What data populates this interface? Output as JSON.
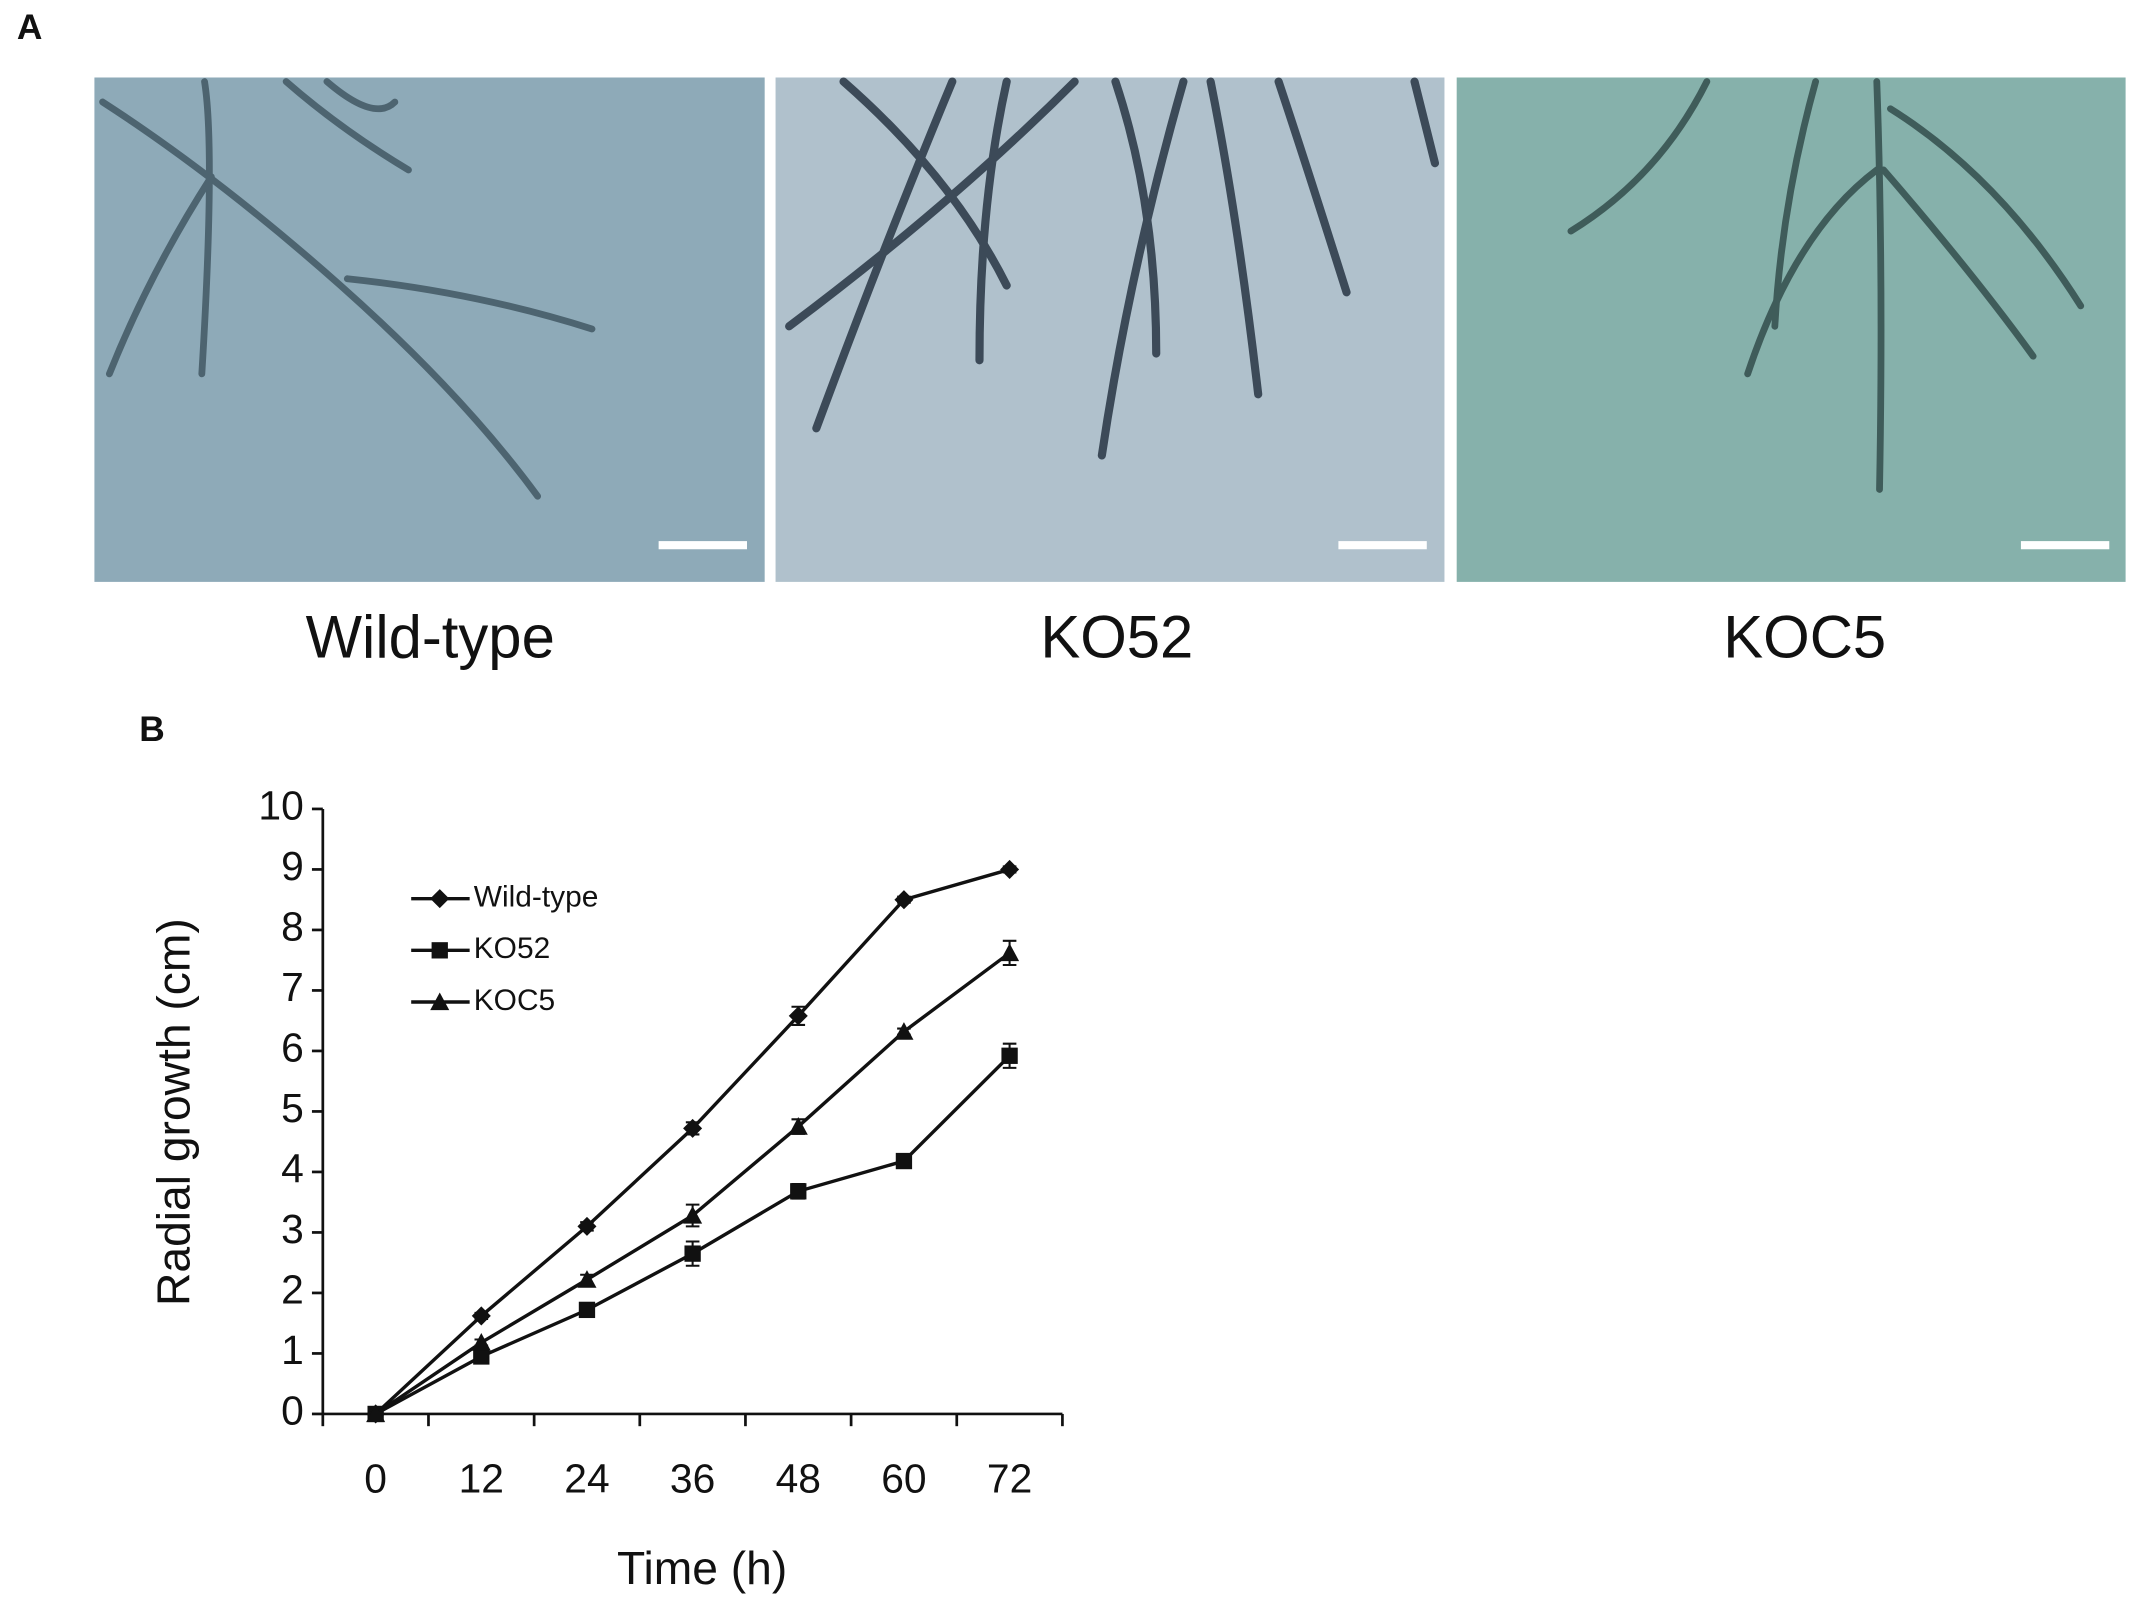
{
  "panel_a": {
    "label": "A",
    "images": [
      {
        "label": "Wild-type"
      },
      {
        "label": "KO52"
      },
      {
        "label": "KOC5"
      }
    ]
  },
  "chart_data": {
    "type": "line",
    "panel_label": "B",
    "x_label": "Time (h)",
    "y_label": "Radial growth (cm)",
    "categories": [
      "0",
      "12",
      "24",
      "36",
      "48",
      "60",
      "72"
    ],
    "ylim": [
      0,
      10
    ],
    "yticks": [
      0,
      1,
      2,
      3,
      4,
      5,
      6,
      7,
      8,
      9,
      10
    ],
    "legend": "upper left",
    "series": [
      {
        "name": "Wild-type",
        "color": "#111111",
        "marker": "diamond",
        "values": [
          0,
          1.62,
          3.1,
          4.72,
          6.58,
          8.5,
          9.0
        ],
        "errors": [
          0.03,
          0.05,
          0.07,
          0.1,
          0.15,
          0.05,
          0.05
        ]
      },
      {
        "name": "KO52",
        "color": "#111111",
        "marker": "square",
        "values": [
          0,
          0.95,
          1.72,
          2.65,
          3.68,
          4.18,
          5.92
        ],
        "errors": [
          0.03,
          0.05,
          0.08,
          0.2,
          0.12,
          0.08,
          0.2
        ]
      },
      {
        "name": "KOC5",
        "color": "#111111",
        "marker": "triangle",
        "values": [
          0,
          1.18,
          2.22,
          3.28,
          4.75,
          6.32,
          7.62
        ],
        "errors": [
          0.03,
          0.05,
          0.08,
          0.18,
          0.12,
          0.05,
          0.2
        ]
      }
    ]
  }
}
